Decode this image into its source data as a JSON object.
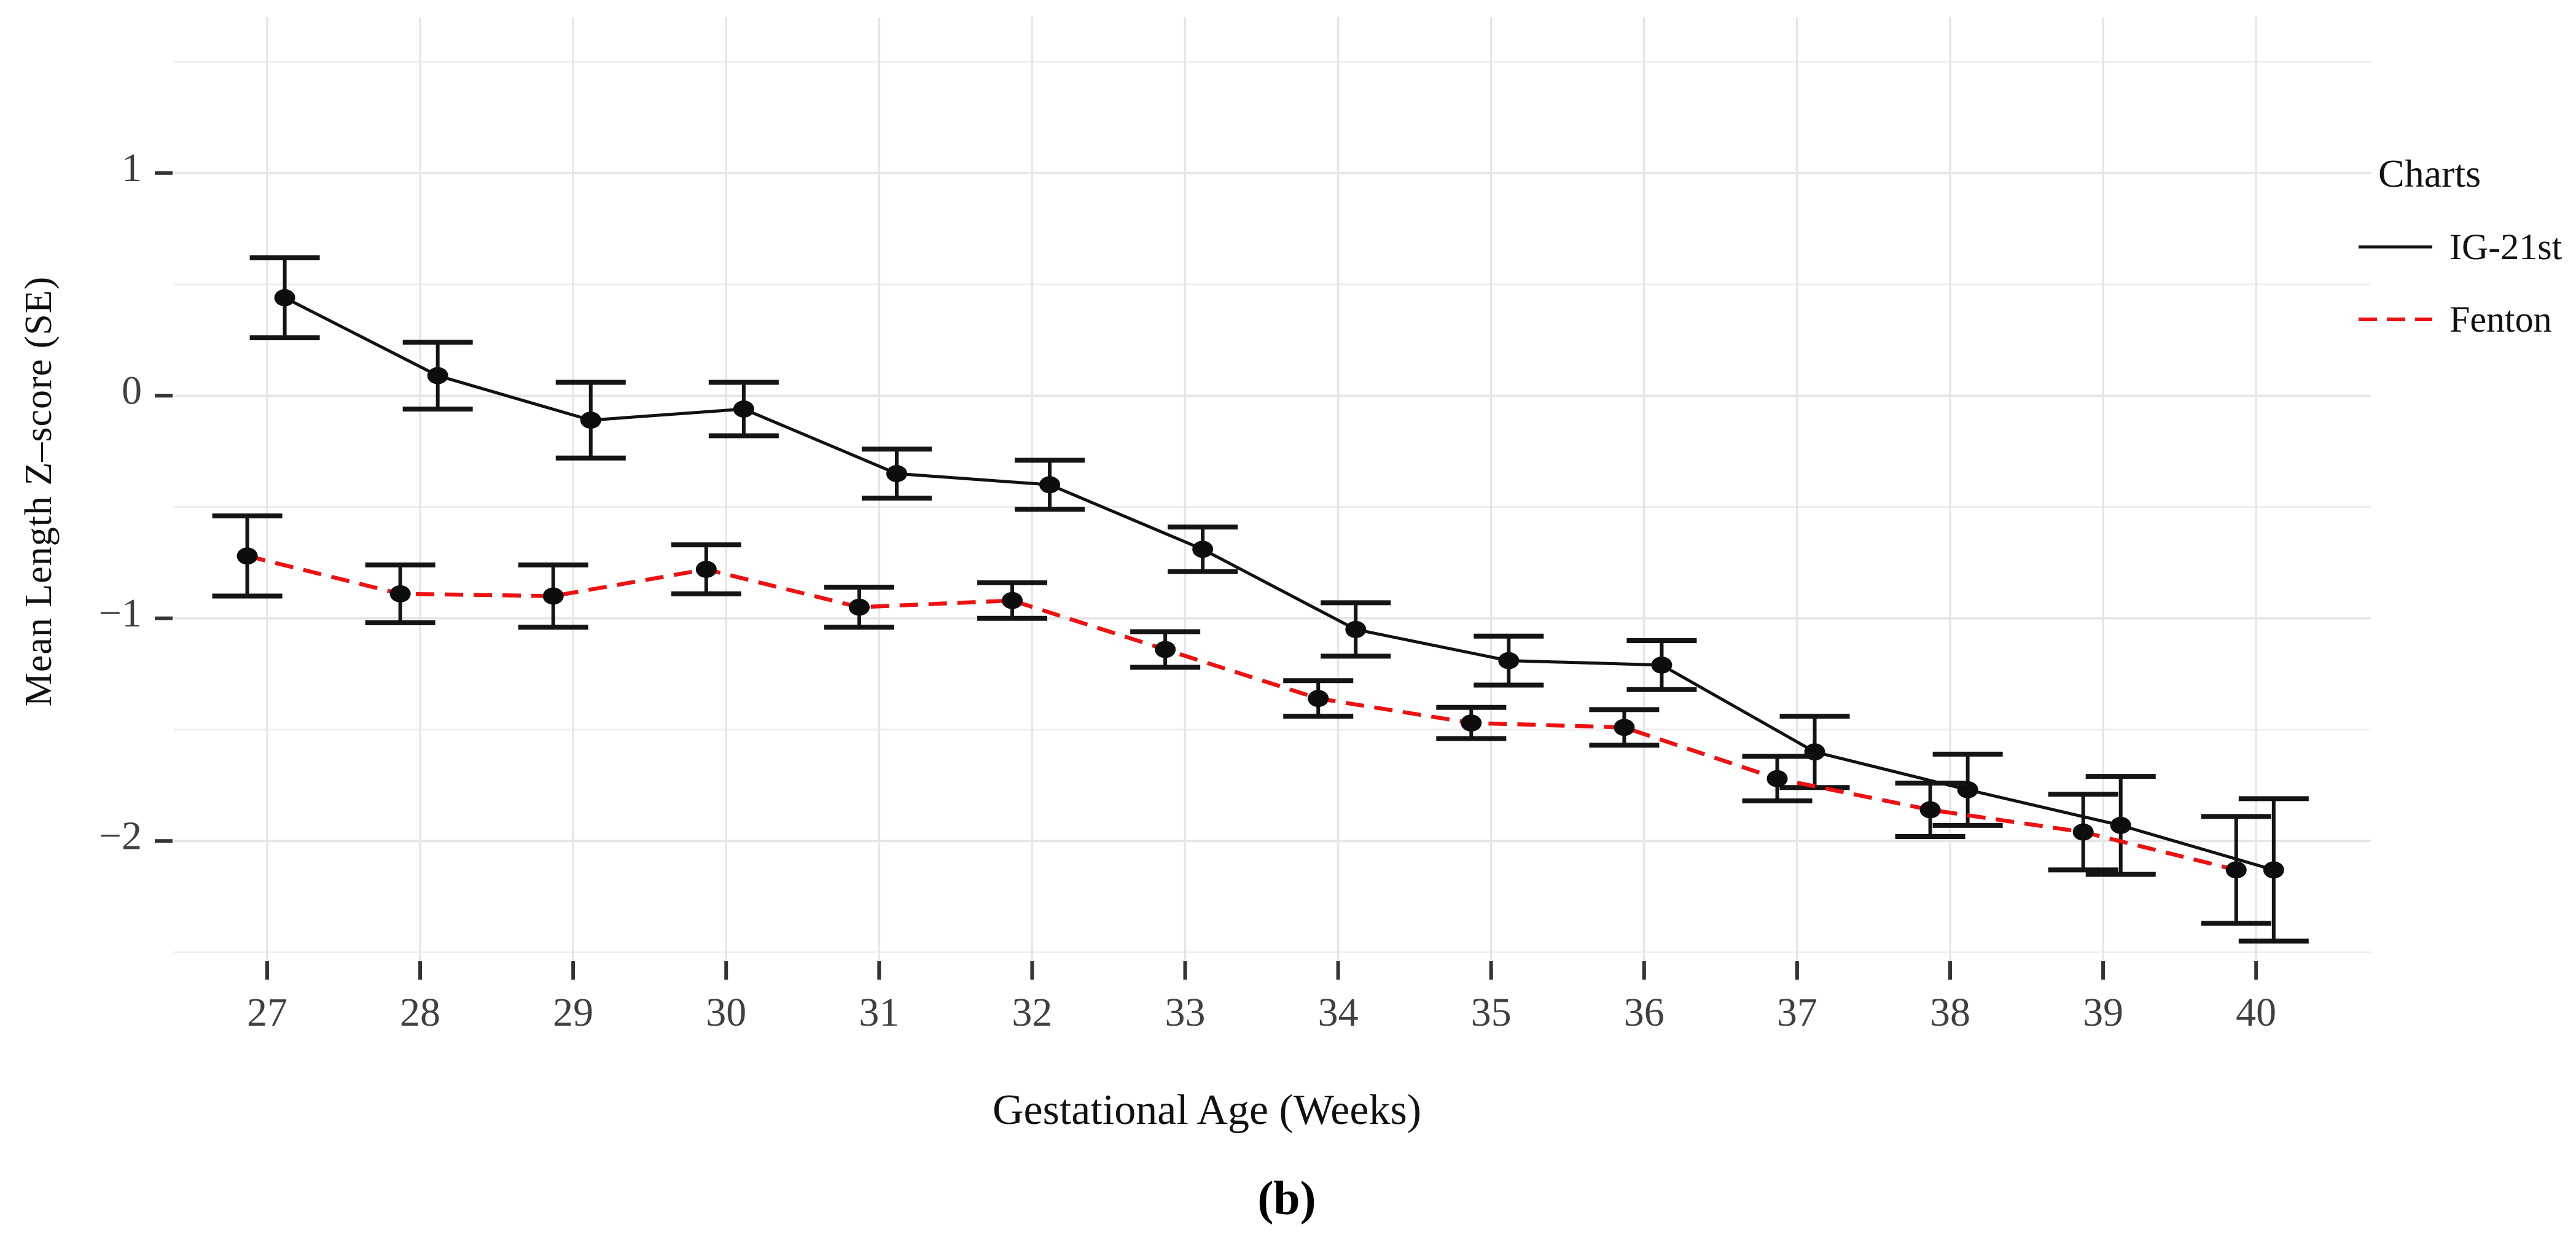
{
  "figure": {
    "caption": "(b)",
    "background": "#ffffff"
  },
  "chart_data": {
    "type": "line",
    "title": "",
    "xlabel": "Gestational Age (Weeks)",
    "ylabel": "Mean Length Z–score (SE)",
    "legend": {
      "title": "Charts",
      "position": "right"
    },
    "x": [
      27,
      28,
      29,
      30,
      31,
      32,
      33,
      34,
      35,
      36,
      37,
      38,
      39,
      40
    ],
    "x_tick_labels": [
      "27",
      "28",
      "29",
      "30",
      "31",
      "32",
      "33",
      "34",
      "35",
      "36",
      "37",
      "38",
      "39",
      "40"
    ],
    "y_ticks": [
      1,
      0,
      -1,
      -2
    ],
    "y_tick_labels": [
      "1",
      "0",
      "−1",
      "−2"
    ],
    "xlim": [
      26.39,
      40.75
    ],
    "ylim": [
      -2.54,
      1.7
    ],
    "grid": "on",
    "y_minor_step": 0.5,
    "marker": "circle",
    "marker_color": "#0d0d0d",
    "error_bar_color": "#141414",
    "grid_color": "#e6e6e6",
    "tick_color": "#333333",
    "tick_label_color": "#404040",
    "series": [
      {
        "name": "IG-21st",
        "color": "#111111",
        "line_style": "solid",
        "x_offset": 0.115,
        "means": [
          0.44,
          0.09,
          -0.11,
          -0.06,
          -0.35,
          -0.4,
          -0.69,
          -1.05,
          -1.19,
          -1.21,
          -1.6,
          -1.77,
          -1.93,
          -2.13
        ],
        "se": [
          0.18,
          0.15,
          0.17,
          0.12,
          0.11,
          0.11,
          0.1,
          0.12,
          0.11,
          0.11,
          0.16,
          0.16,
          0.22,
          0.32
        ]
      },
      {
        "name": "Fenton",
        "color": "#ee1111",
        "line_style": "dashed",
        "x_offset": -0.13,
        "means": [
          -0.72,
          -0.89,
          -0.9,
          -0.78,
          -0.95,
          -0.92,
          -1.14,
          -1.36,
          -1.47,
          -1.49,
          -1.72,
          -1.86,
          -1.96,
          -2.13
        ],
        "se": [
          0.18,
          0.13,
          0.14,
          0.11,
          0.09,
          0.08,
          0.08,
          0.08,
          0.07,
          0.08,
          0.1,
          0.12,
          0.17,
          0.24
        ]
      }
    ]
  }
}
